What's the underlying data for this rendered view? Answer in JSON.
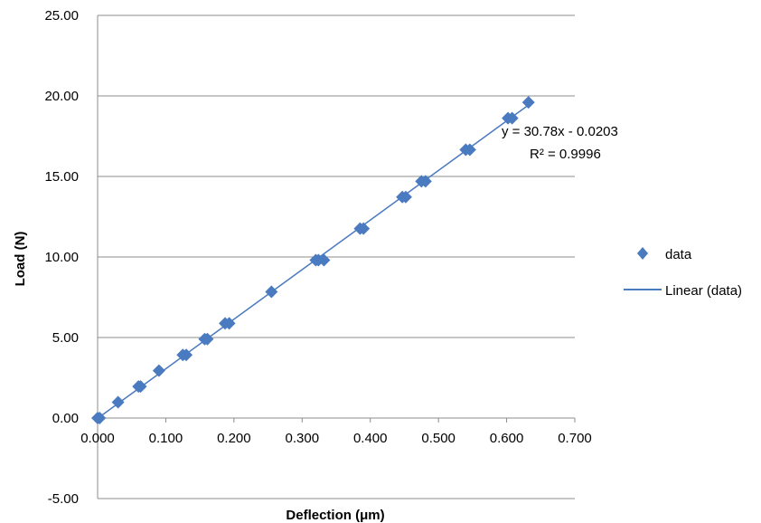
{
  "chart_data": {
    "type": "scatter",
    "xlabel": "Deflection (μm)",
    "ylabel": "Load (N)",
    "xlim": [
      0,
      0.7
    ],
    "ylim": [
      -5,
      25
    ],
    "x_ticks": [
      "0.000",
      "0.100",
      "0.200",
      "0.300",
      "0.400",
      "0.500",
      "0.600",
      "0.700"
    ],
    "y_ticks": [
      "25.00",
      "20.00",
      "15.00",
      "10.00",
      "5.00",
      "0.00",
      "-5.00"
    ],
    "grid": "horizontal",
    "legend_position": "right",
    "series": [
      {
        "name": "data",
        "marker": "diamond",
        "color": "#4a7abf",
        "points": [
          [
            0.0,
            0.0
          ],
          [
            0.003,
            0.0
          ],
          [
            0.03,
            0.98
          ],
          [
            0.06,
            1.96
          ],
          [
            0.063,
            1.96
          ],
          [
            0.09,
            2.94
          ],
          [
            0.125,
            3.92
          ],
          [
            0.13,
            3.92
          ],
          [
            0.157,
            4.9
          ],
          [
            0.161,
            4.9
          ],
          [
            0.187,
            5.88
          ],
          [
            0.193,
            5.88
          ],
          [
            0.255,
            7.84
          ],
          [
            0.32,
            9.8
          ],
          [
            0.324,
            9.8
          ],
          [
            0.332,
            9.8
          ],
          [
            0.385,
            11.76
          ],
          [
            0.39,
            11.76
          ],
          [
            0.447,
            13.72
          ],
          [
            0.452,
            13.72
          ],
          [
            0.475,
            14.7
          ],
          [
            0.481,
            14.7
          ],
          [
            0.54,
            16.66
          ],
          [
            0.546,
            16.66
          ],
          [
            0.602,
            18.62
          ],
          [
            0.608,
            18.62
          ],
          [
            0.632,
            19.6
          ]
        ]
      },
      {
        "name": "Linear (data)",
        "type": "line",
        "color": "#4a7abf",
        "x": [
          0.0,
          0.634
        ],
        "slope": 30.78,
        "intercept": -0.0203
      }
    ],
    "annotations": {
      "equation": "y = 30.78x - 0.0203",
      "r_squared": "R² = 0.9996"
    }
  }
}
